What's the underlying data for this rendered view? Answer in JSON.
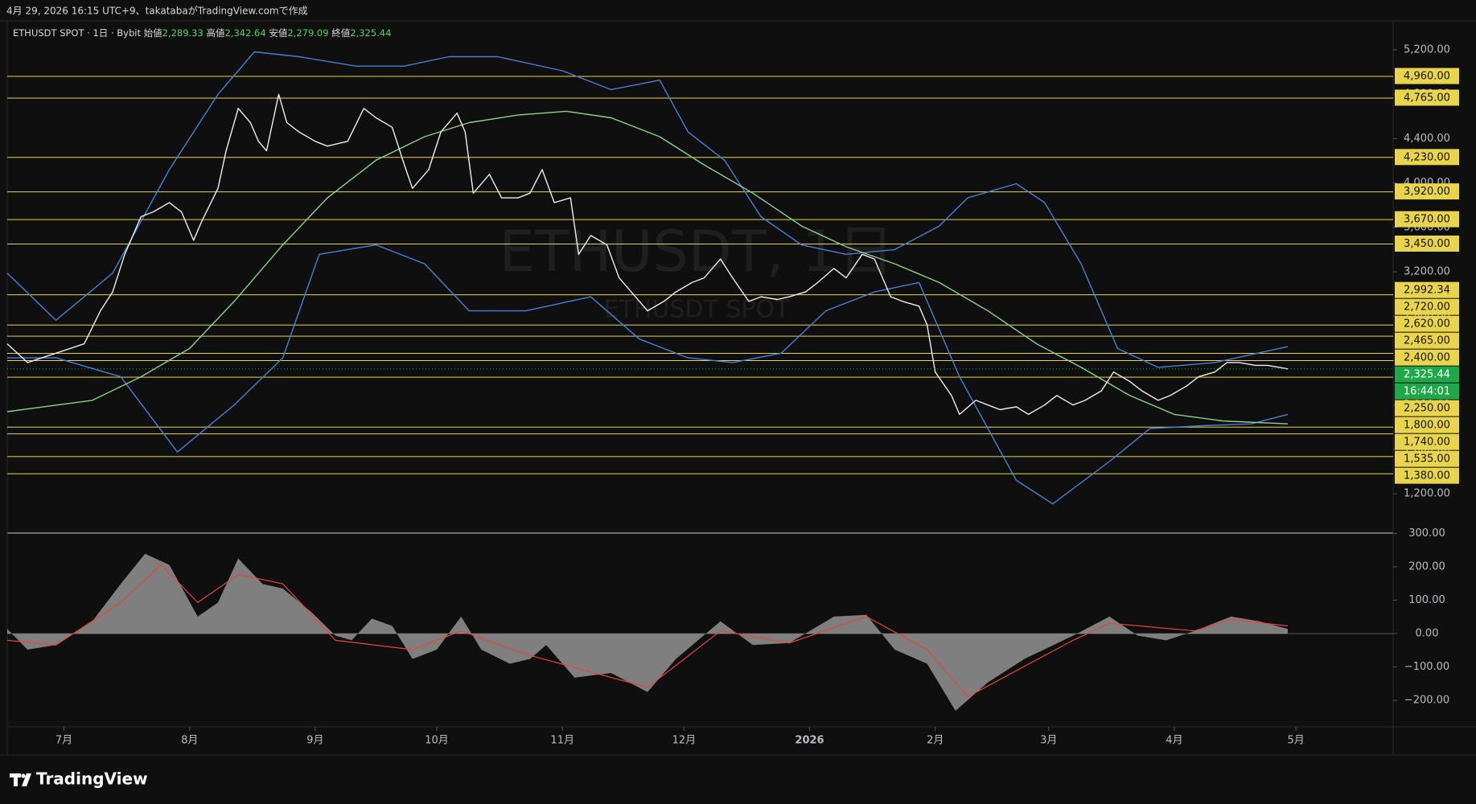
{
  "header": {
    "caption": "4月 29, 2026 16:15 UTC+9、takatabaがTradingView.comで作成"
  },
  "legend": {
    "symbol": "ETHUSDT SPOT · 1日 · Bybit",
    "open_label": "始値",
    "open": "2,289.33",
    "high_label": "高値",
    "high": "2,342.64",
    "low_label": "安値",
    "low": "2,279.09",
    "close_label": "終値",
    "close": "2,325.44"
  },
  "watermark": {
    "title": "ETHUSDT, 1日",
    "subtitle": "ETHUSDT SPOT"
  },
  "footer": {
    "brand": "TradingView"
  },
  "chart_data": [
    {
      "type": "line",
      "xlim": [
        0,
        342
      ],
      "xticks": [
        {
          "value": 14,
          "label": "7月"
        },
        {
          "value": 45,
          "label": "8月"
        },
        {
          "value": 76,
          "label": "9月"
        },
        {
          "value": 106,
          "label": "10月"
        },
        {
          "value": 137,
          "label": "11月"
        },
        {
          "value": 167,
          "label": "12月"
        },
        {
          "value": 198,
          "label": "2026"
        },
        {
          "value": 229,
          "label": "2月"
        },
        {
          "value": 257,
          "label": "3月"
        },
        {
          "value": 288,
          "label": "4月"
        },
        {
          "value": 318,
          "label": "5月"
        }
      ],
      "ylim": [
        846,
        5460
      ],
      "yticks": [
        {
          "value": 1200,
          "label": "1,200.00"
        },
        {
          "value": 1600,
          "label": "1,600.00"
        },
        {
          "value": 2000,
          "label": "2,000.00"
        },
        {
          "value": 2400,
          "label": "2,400.00"
        },
        {
          "value": 2800,
          "label": "2,800.00"
        },
        {
          "value": 3200,
          "label": "3,200.00"
        },
        {
          "value": 3600,
          "label": "3,600.00"
        },
        {
          "value": 4000,
          "label": "4,000.00"
        },
        {
          "value": 4400,
          "label": "4,400.00"
        },
        {
          "value": 4800,
          "label": "4,800.00"
        },
        {
          "value": 5200,
          "label": "5,200.00"
        }
      ],
      "level_color": "#e8d44d",
      "levels": [
        {
          "value": 4960,
          "label": "4,960.00"
        },
        {
          "value": 4765,
          "label": "4,765.00"
        },
        {
          "value": 4230,
          "label": "4,230.00"
        },
        {
          "value": 3920,
          "label": "3,920.00"
        },
        {
          "value": 3670,
          "label": "3,670.00"
        },
        {
          "value": 3450,
          "label": "3,450.00"
        },
        {
          "value": 2992.34,
          "label": "2,992.34"
        },
        {
          "value": 2720,
          "label": "2,720.00"
        },
        {
          "value": 2620,
          "label": "2,620.00"
        },
        {
          "value": 2465,
          "label": "2,465.00"
        },
        {
          "value": 2400,
          "label": "2,400.00"
        },
        {
          "value": 2250,
          "label": "2,250.00"
        },
        {
          "value": 1800,
          "label": "1,800.00"
        },
        {
          "value": 1740,
          "label": "1,740.00"
        },
        {
          "value": 1535,
          "label": "1,535.00"
        },
        {
          "value": 1380,
          "label": "1,380.00"
        }
      ],
      "current": {
        "value": 2325.44,
        "label": "2,325.44",
        "countdown": "16:44:01",
        "color": "#1fa84a"
      },
      "series": [
        {
          "color": "#4a7fd6",
          "x": [
            0,
            12,
            26,
            40,
            52,
            61,
            72,
            86,
            98,
            109,
            121,
            137,
            149,
            161,
            168,
            177,
            186,
            196,
            207,
            219,
            230,
            237,
            249,
            256,
            265,
            274,
            284,
            298,
            316
          ],
          "values": [
            3187,
            2763,
            3187,
            4120,
            4799,
            5181,
            5138,
            5053,
            5053,
            5138,
            5138,
            5011,
            4841,
            4926,
            4460,
            4205,
            3696,
            3442,
            3357,
            3400,
            3612,
            3866,
            3993,
            3823,
            3272,
            2509,
            2339,
            2382,
            2526
          ]
        },
        {
          "color": "#4a7fd6",
          "x": [
            0,
            12,
            28,
            42,
            56,
            68,
            77,
            91,
            103,
            114,
            128,
            144,
            156,
            168,
            179,
            191,
            202,
            214,
            225,
            235,
            249,
            258,
            272,
            282,
            295,
            307,
            316
          ],
          "values": [
            2424,
            2424,
            2254,
            1576,
            2000,
            2424,
            3357,
            3442,
            3272,
            2848,
            2848,
            2975,
            2594,
            2424,
            2382,
            2466,
            2848,
            3018,
            3103,
            2254,
            1321,
            1109,
            1491,
            1788,
            1813,
            1830,
            1915
          ]
        },
        {
          "color": "#8fd18c",
          "x": [
            0,
            21,
            33,
            45,
            56,
            68,
            79,
            91,
            103,
            114,
            126,
            138,
            149,
            161,
            172,
            184,
            196,
            207,
            219,
            230,
            242,
            254,
            265,
            277,
            288,
            300,
            316
          ],
          "values": [
            1940,
            2042,
            2254,
            2509,
            2933,
            3442,
            3866,
            4205,
            4417,
            4544,
            4612,
            4646,
            4587,
            4417,
            4163,
            3908,
            3612,
            3425,
            3272,
            3103,
            2848,
            2551,
            2339,
            2085,
            1915,
            1856,
            1830
          ]
        },
        {
          "color": "#eeeeee",
          "x": [
            0,
            5,
            12,
            19,
            23,
            26,
            29,
            33,
            36,
            40,
            43,
            46,
            48,
            52,
            54,
            57,
            60,
            62,
            64,
            67,
            69,
            72,
            76,
            79,
            84,
            88,
            91,
            95,
            98,
            100,
            104,
            107,
            111,
            113,
            115,
            119,
            122,
            126,
            129,
            132,
            135,
            139,
            141,
            144,
            148,
            151,
            155,
            158,
            162,
            165,
            169,
            172,
            176,
            179,
            183,
            186,
            190,
            193,
            197,
            200,
            204,
            207,
            211,
            214,
            218,
            221,
            225,
            227,
            229,
            233,
            235,
            239,
            242,
            245,
            249,
            252,
            256,
            259,
            263,
            266,
            270,
            273,
            277,
            280,
            284,
            287,
            291,
            294,
            298,
            301,
            304,
            308,
            311,
            316
          ],
          "values": [
            2551,
            2382,
            2466,
            2551,
            2848,
            3018,
            3357,
            3696,
            3739,
            3823,
            3739,
            3484,
            3654,
            3951,
            4290,
            4672,
            4544,
            4375,
            4290,
            4799,
            4544,
            4460,
            4375,
            4332,
            4375,
            4672,
            4587,
            4502,
            4163,
            3951,
            4121,
            4460,
            4629,
            4460,
            3908,
            4078,
            3866,
            3866,
            3908,
            4121,
            3823,
            3866,
            3357,
            3527,
            3442,
            3145,
            2975,
            2848,
            2933,
            3018,
            3103,
            3145,
            3315,
            3145,
            2933,
            2975,
            2950,
            2975,
            3018,
            3103,
            3230,
            3145,
            3357,
            3315,
            2975,
            2933,
            2890,
            2721,
            2297,
            2085,
            1915,
            2042,
            2000,
            1958,
            1983,
            1915,
            2000,
            2085,
            2000,
            2042,
            2127,
            2297,
            2212,
            2127,
            2042,
            2085,
            2170,
            2254,
            2297,
            2382,
            2382,
            2357,
            2357,
            2325.44
          ]
        }
      ]
    },
    {
      "type": "area",
      "xlim": [
        0,
        342
      ],
      "ylim": [
        -279,
        301
      ],
      "yticks": [
        {
          "value": -200,
          "label": "−200.00"
        },
        {
          "value": -100,
          "label": "−100.00"
        },
        {
          "value": 0,
          "label": "0.00"
        },
        {
          "value": 100,
          "label": "100.00"
        },
        {
          "value": 200,
          "label": "200.00"
        },
        {
          "value": 300,
          "label": "300.00"
        }
      ],
      "series": [
        {
          "style": "area",
          "color": "#8c8c8c",
          "x": [
            0,
            5,
            12,
            21,
            28,
            34,
            40,
            47,
            52,
            57,
            63,
            68,
            75,
            81,
            85,
            90,
            95,
            100,
            106,
            112,
            117,
            124,
            129,
            133,
            140,
            149,
            158,
            165,
            176,
            184,
            193,
            204,
            212,
            219,
            227,
            234,
            242,
            251,
            263,
            272,
            279,
            286,
            293,
            302,
            309,
            316
          ],
          "values": [
            14,
            -48,
            -34,
            37,
            149,
            239,
            206,
            51,
            93,
            225,
            149,
            135,
            65,
            -6,
            -20,
            45,
            23,
            -76,
            -48,
            51,
            -48,
            -90,
            -76,
            -34,
            -132,
            -118,
            -175,
            -76,
            37,
            -34,
            -28,
            51,
            56,
            -48,
            -90,
            -231,
            -146,
            -76,
            -6,
            51,
            -6,
            -20,
            8,
            51,
            37,
            14
          ]
        },
        {
          "style": "line",
          "color": "#e8453c",
          "x": [
            0,
            12,
            28,
            38,
            47,
            57,
            68,
            81,
            100,
            112,
            128,
            158,
            176,
            193,
            212,
            227,
            237,
            263,
            272,
            293,
            302,
            316
          ],
          "values": [
            -20,
            -34,
            93,
            206,
            93,
            177,
            149,
            -20,
            -48,
            8,
            -62,
            -161,
            8,
            -28,
            51,
            -48,
            -189,
            -20,
            31,
            8,
            42,
            23
          ]
        }
      ]
    }
  ]
}
